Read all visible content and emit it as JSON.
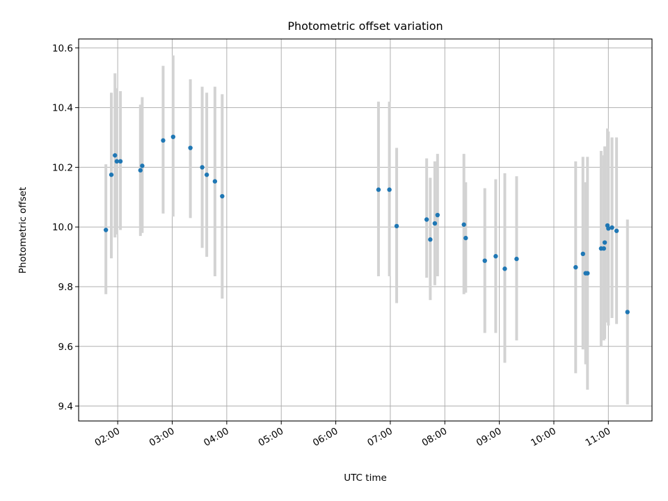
{
  "chart_data": {
    "type": "scatter",
    "title": "Photometric offset variation",
    "xlabel": "UTC time",
    "ylabel": "Photometric offset",
    "x_ticks": [
      "02:00",
      "03:00",
      "04:00",
      "05:00",
      "06:00",
      "07:00",
      "08:00",
      "09:00",
      "10:00",
      "11:00"
    ],
    "y_ticks": [
      "9.4",
      "9.6",
      "9.8",
      "10.0",
      "10.2",
      "10.4",
      "10.6"
    ],
    "xlim": [
      "01:17",
      "11:48"
    ],
    "ylim": [
      9.35,
      10.63
    ],
    "grid": true,
    "legend": "none",
    "colors": {
      "marker": "#1f77b4",
      "errorbar": "#d3d3d3",
      "grid": "#b0b0b0"
    },
    "series": [
      {
        "error_bars": true,
        "points": [
          {
            "x": "01:47",
            "y": 9.99,
            "lo": 9.775,
            "hi": 10.21
          },
          {
            "x": "01:53",
            "y": 10.175,
            "lo": 9.895,
            "hi": 10.45
          },
          {
            "x": "01:57",
            "y": 10.24,
            "lo": 9.965,
            "hi": 10.515
          },
          {
            "x": "01:59",
            "y": 10.22,
            "lo": 9.975,
            "hi": 10.465
          },
          {
            "x": "02:03",
            "y": 10.22,
            "lo": 9.99,
            "hi": 10.455
          },
          {
            "x": "02:25",
            "y": 10.19,
            "lo": 9.97,
            "hi": 10.41
          },
          {
            "x": "02:27",
            "y": 10.205,
            "lo": 9.98,
            "hi": 10.435
          },
          {
            "x": "02:50",
            "y": 10.29,
            "lo": 10.045,
            "hi": 10.54
          },
          {
            "x": "03:01",
            "y": 10.302,
            "lo": 10.035,
            "hi": 10.575
          },
          {
            "x": "03:20",
            "y": 10.265,
            "lo": 10.03,
            "hi": 10.495
          },
          {
            "x": "03:33",
            "y": 10.2,
            "lo": 9.93,
            "hi": 10.47
          },
          {
            "x": "03:38",
            "y": 10.175,
            "lo": 9.9,
            "hi": 10.45
          },
          {
            "x": "03:47",
            "y": 10.153,
            "lo": 9.835,
            "hi": 10.47
          },
          {
            "x": "03:55",
            "y": 10.103,
            "lo": 9.76,
            "hi": 10.445
          },
          {
            "x": "06:47",
            "y": 10.125,
            "lo": 9.835,
            "hi": 10.42
          },
          {
            "x": "06:59",
            "y": 10.125,
            "lo": 9.835,
            "hi": 10.42
          },
          {
            "x": "07:07",
            "y": 10.003,
            "lo": 9.745,
            "hi": 10.265
          },
          {
            "x": "07:40",
            "y": 10.025,
            "lo": 9.83,
            "hi": 10.23
          },
          {
            "x": "07:44",
            "y": 9.958,
            "lo": 9.755,
            "hi": 10.165
          },
          {
            "x": "07:49",
            "y": 10.012,
            "lo": 9.805,
            "hi": 10.22
          },
          {
            "x": "07:52",
            "y": 10.04,
            "lo": 9.835,
            "hi": 10.245
          },
          {
            "x": "08:21",
            "y": 10.008,
            "lo": 9.775,
            "hi": 10.245
          },
          {
            "x": "08:23",
            "y": 9.963,
            "lo": 9.78,
            "hi": 10.15
          },
          {
            "x": "08:44",
            "y": 9.887,
            "lo": 9.645,
            "hi": 10.13
          },
          {
            "x": "08:56",
            "y": 9.902,
            "lo": 9.645,
            "hi": 10.16
          },
          {
            "x": "09:06",
            "y": 9.86,
            "lo": 9.545,
            "hi": 10.18
          },
          {
            "x": "09:19",
            "y": 9.893,
            "lo": 9.62,
            "hi": 10.17
          },
          {
            "x": "10:24",
            "y": 9.865,
            "lo": 9.51,
            "hi": 10.22
          },
          {
            "x": "10:32",
            "y": 9.91,
            "lo": 9.59,
            "hi": 10.235
          },
          {
            "x": "10:35",
            "y": 9.845,
            "lo": 9.54,
            "hi": 10.15
          },
          {
            "x": "10:37",
            "y": 9.845,
            "lo": 9.455,
            "hi": 10.235
          },
          {
            "x": "10:52",
            "y": 9.928,
            "lo": 9.6,
            "hi": 10.255
          },
          {
            "x": "10:55",
            "y": 9.928,
            "lo": 9.62,
            "hi": 10.24
          },
          {
            "x": "10:56",
            "y": 9.948,
            "lo": 9.625,
            "hi": 10.27
          },
          {
            "x": "10:59",
            "y": 10.005,
            "lo": 9.68,
            "hi": 10.33
          },
          {
            "x": "11:00",
            "y": 9.995,
            "lo": 9.67,
            "hi": 10.32
          },
          {
            "x": "11:04",
            "y": 9.998,
            "lo": 9.695,
            "hi": 10.3
          },
          {
            "x": "11:09",
            "y": 9.987,
            "lo": 9.675,
            "hi": 10.3
          },
          {
            "x": "11:21",
            "y": 9.715,
            "lo": 9.405,
            "hi": 10.025
          }
        ]
      }
    ]
  }
}
